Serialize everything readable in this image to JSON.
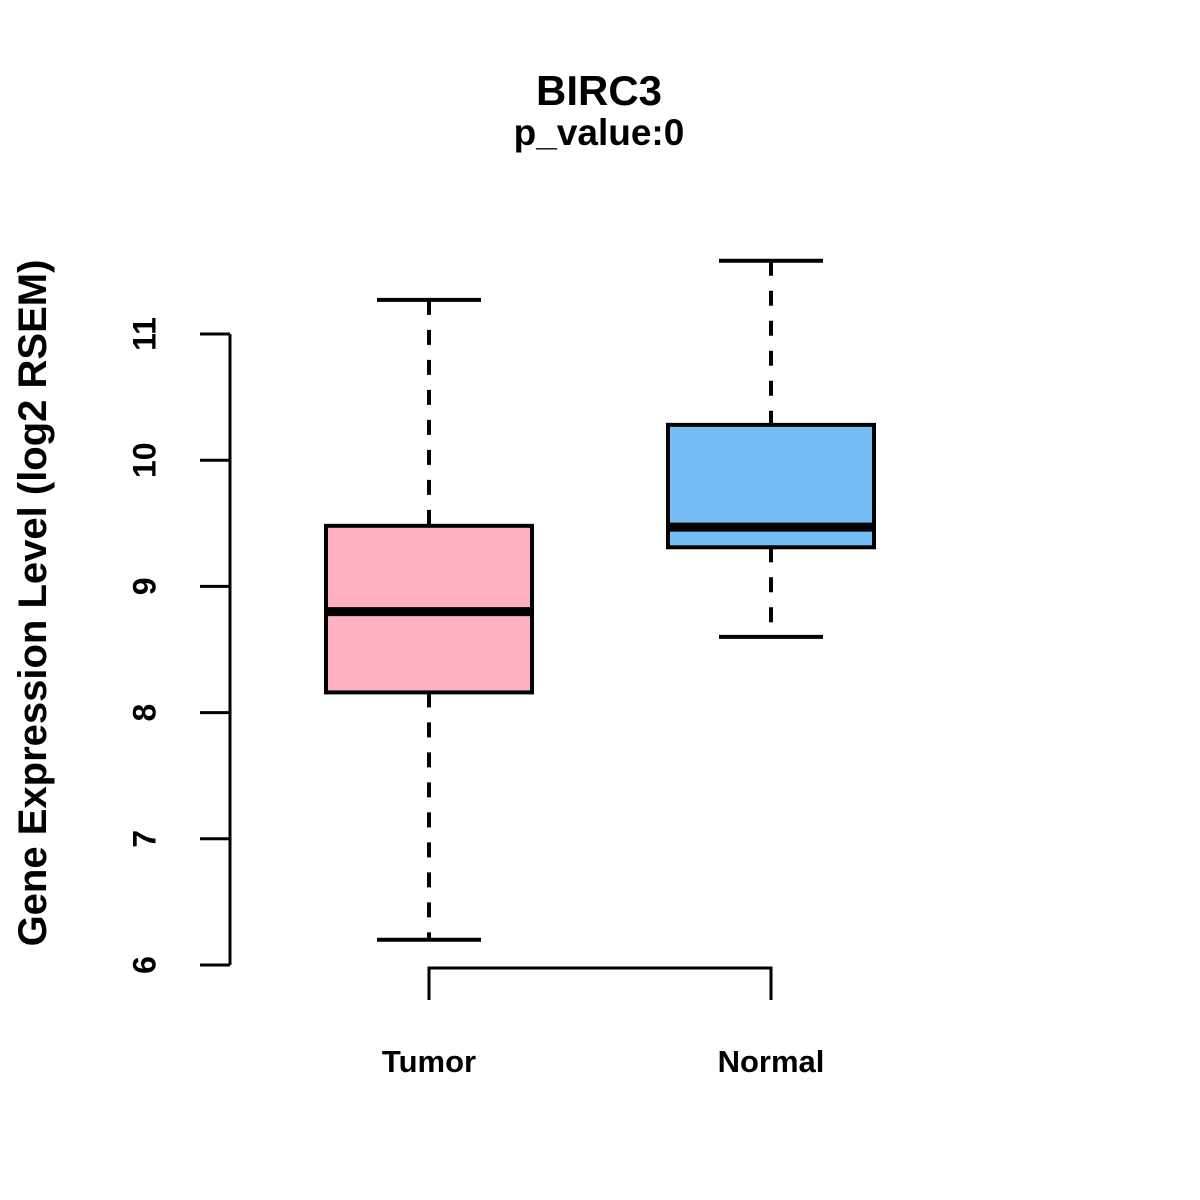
{
  "header": {
    "title": "BIRC3",
    "subtitle": "p_value:0"
  },
  "chart_data": {
    "type": "boxplot",
    "title": "BIRC3",
    "subtitle": "p_value:0",
    "xlabel": "",
    "ylabel": "Gene Expression Level (log2 RSEM)",
    "categories": [
      "Tumor",
      "Normal"
    ],
    "y_ticks": [
      6,
      7,
      8,
      9,
      10,
      11
    ],
    "ylim": [
      5.95,
      11.65
    ],
    "grid": false,
    "legend": "none",
    "whisker_style": "dashed",
    "series": [
      {
        "name": "Tumor",
        "color": "#FFB1C1",
        "min": 6.2,
        "q1": 8.16,
        "median": 8.8,
        "q3": 9.48,
        "max": 11.27
      },
      {
        "name": "Normal",
        "color": "#75BEF5",
        "min": 8.6,
        "q1": 9.31,
        "median": 9.47,
        "q3": 10.28,
        "max": 11.58
      }
    ]
  },
  "colors": {
    "tumor_box_fill": "#FFB1C1",
    "normal_box_fill": "#75BEF5",
    "stroke": "#000000",
    "background": "#FFFFFF",
    "text": "#000000"
  }
}
